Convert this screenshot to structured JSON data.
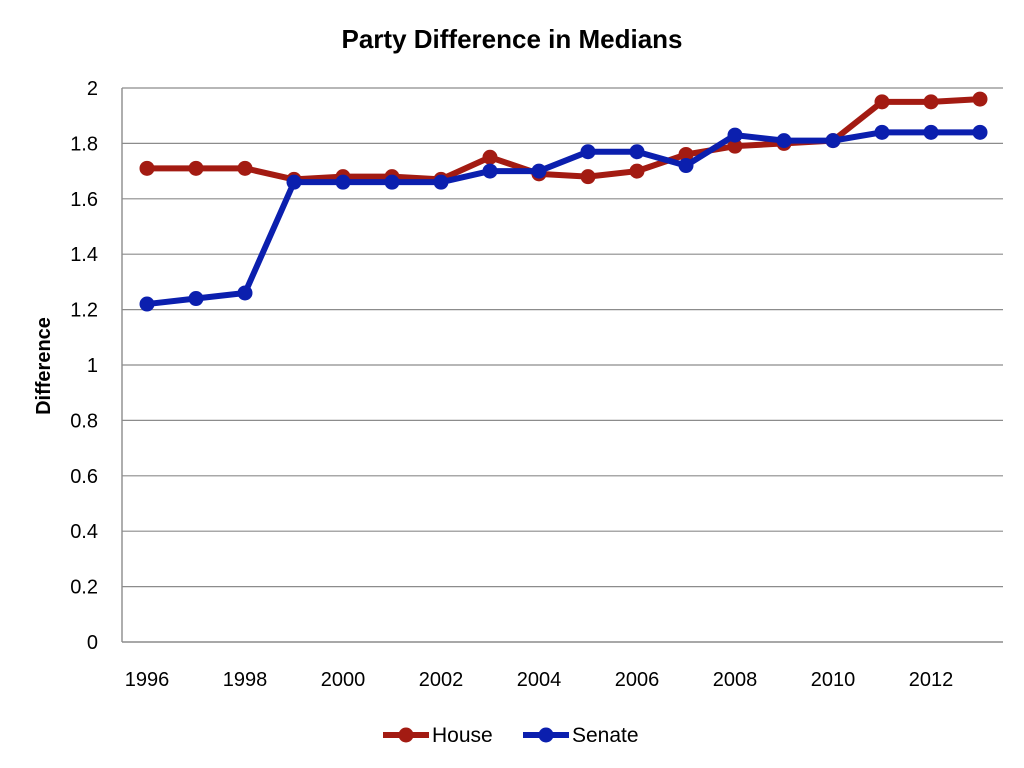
{
  "chart_data": {
    "type": "line",
    "title": "Party Difference in Medians",
    "xlabel": "",
    "ylabel": "Difference",
    "x": [
      1996,
      1997,
      1998,
      1999,
      2000,
      2001,
      2002,
      2003,
      2004,
      2005,
      2006,
      2007,
      2008,
      2009,
      2010,
      2011,
      2012,
      2013
    ],
    "xticks": [
      "1996",
      "1998",
      "2000",
      "2002",
      "2004",
      "2006",
      "2008",
      "2010",
      "2012"
    ],
    "yticks": [
      "0",
      "0.2",
      "0.4",
      "0.6",
      "0.8",
      "1",
      "1.2",
      "1.4",
      "1.6",
      "1.8",
      "2"
    ],
    "ylim": [
      0,
      2
    ],
    "grid": true,
    "legend_position": "bottom",
    "series": [
      {
        "name": "House",
        "color": "#a31b12",
        "values": [
          1.71,
          1.71,
          1.71,
          1.67,
          1.68,
          1.68,
          1.67,
          1.75,
          1.69,
          1.68,
          1.7,
          1.76,
          1.79,
          1.8,
          1.81,
          1.95,
          1.95,
          1.96
        ]
      },
      {
        "name": "Senate",
        "color": "#0b1fae",
        "values": [
          1.22,
          1.24,
          1.26,
          1.66,
          1.66,
          1.66,
          1.66,
          1.7,
          1.7,
          1.77,
          1.77,
          1.72,
          1.83,
          1.81,
          1.81,
          1.84,
          1.84,
          1.84
        ]
      }
    ]
  }
}
